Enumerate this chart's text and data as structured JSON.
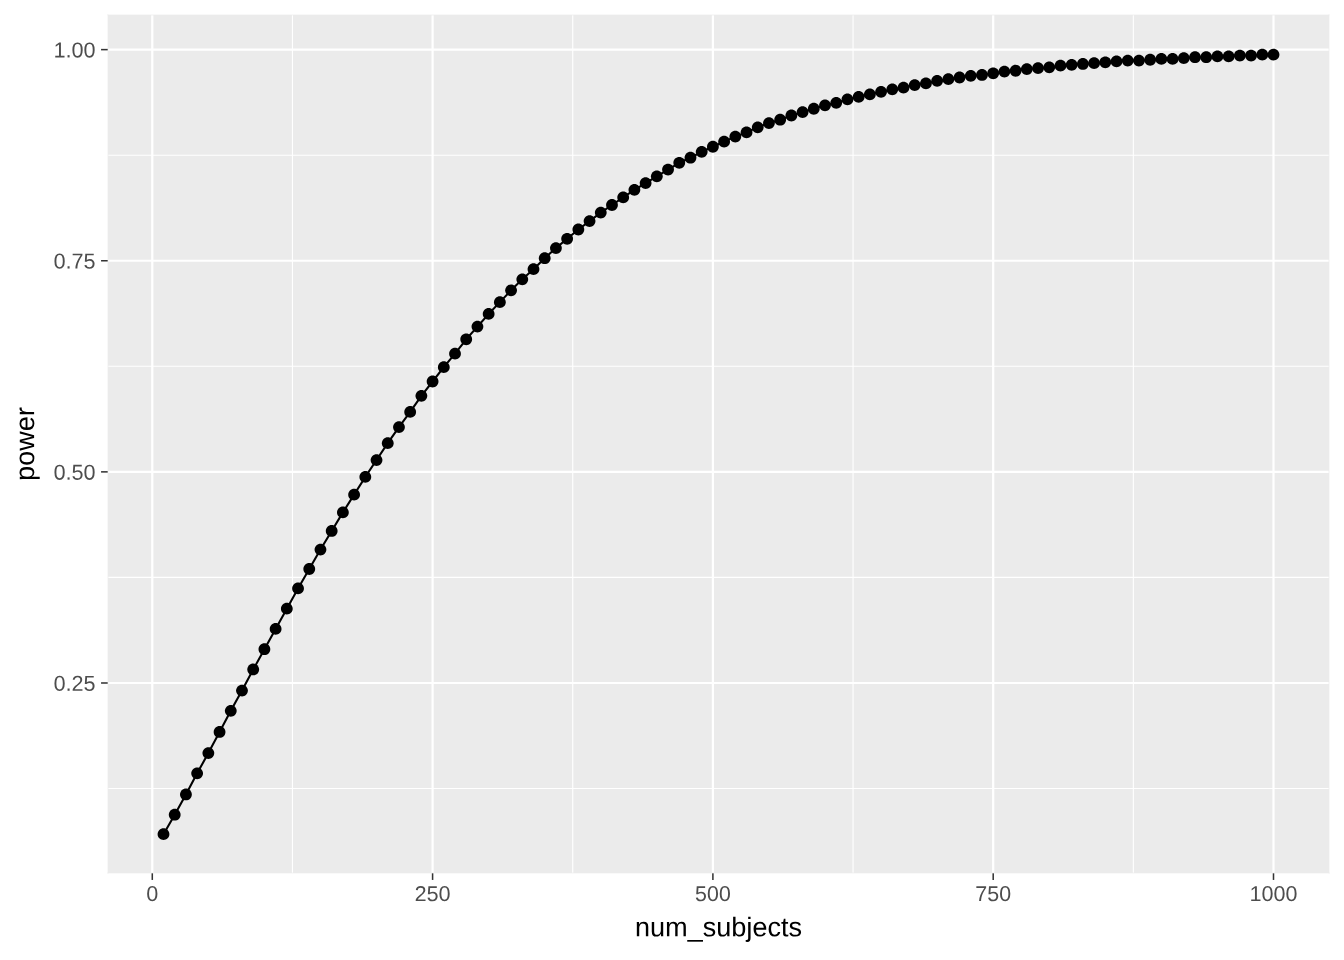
{
  "chart_data": {
    "type": "line",
    "xlabel": "num_subjects",
    "ylabel": "power",
    "x": [
      10,
      20,
      30,
      40,
      50,
      60,
      70,
      80,
      90,
      100,
      110,
      120,
      130,
      140,
      150,
      160,
      170,
      180,
      190,
      200,
      210,
      220,
      230,
      240,
      250,
      260,
      270,
      280,
      290,
      300,
      310,
      320,
      330,
      340,
      350,
      360,
      370,
      380,
      390,
      400,
      410,
      420,
      430,
      440,
      450,
      460,
      470,
      480,
      490,
      500,
      510,
      520,
      530,
      540,
      550,
      560,
      570,
      580,
      590,
      600,
      610,
      620,
      630,
      640,
      650,
      660,
      670,
      680,
      690,
      700,
      710,
      720,
      730,
      740,
      750,
      760,
      770,
      780,
      790,
      800,
      810,
      820,
      830,
      840,
      850,
      860,
      870,
      880,
      890,
      900,
      910,
      920,
      930,
      940,
      950,
      960,
      970,
      980,
      990,
      1000
    ],
    "series": [
      {
        "color": "#000000",
        "values": [
          0.071,
          0.094,
          0.118,
          0.143,
          0.167,
          0.192,
          0.217,
          0.241,
          0.266,
          0.29,
          0.314,
          0.338,
          0.362,
          0.385,
          0.408,
          0.43,
          0.452,
          0.473,
          0.494,
          0.514,
          0.534,
          0.553,
          0.571,
          0.59,
          0.607,
          0.624,
          0.64,
          0.657,
          0.672,
          0.687,
          0.701,
          0.715,
          0.728,
          0.74,
          0.753,
          0.765,
          0.776,
          0.787,
          0.797,
          0.807,
          0.816,
          0.825,
          0.834,
          0.842,
          0.85,
          0.858,
          0.866,
          0.872,
          0.879,
          0.885,
          0.891,
          0.897,
          0.902,
          0.908,
          0.913,
          0.917,
          0.922,
          0.926,
          0.93,
          0.934,
          0.937,
          0.941,
          0.944,
          0.947,
          0.95,
          0.953,
          0.955,
          0.958,
          0.96,
          0.963,
          0.965,
          0.967,
          0.969,
          0.97,
          0.972,
          0.974,
          0.975,
          0.977,
          0.978,
          0.979,
          0.981,
          0.982,
          0.983,
          0.984,
          0.985,
          0.986,
          0.987,
          0.987,
          0.988,
          0.989,
          0.989,
          0.99,
          0.991,
          0.991,
          0.992,
          0.992,
          0.993,
          0.993,
          0.994,
          0.994
        ]
      }
    ],
    "xlim": [
      -39.5,
      1049.5
    ],
    "ylim": [
      0.025,
      1.041
    ],
    "xticks": [
      0,
      250,
      500,
      750,
      1000
    ],
    "yticks": [
      0.25,
      {
        "value": 0.5,
        "label": "0.50"
      },
      0.75,
      {
        "value": 1.0,
        "label": "1.00"
      }
    ],
    "grid": true,
    "marker": "circle",
    "line_style": "solid"
  }
}
